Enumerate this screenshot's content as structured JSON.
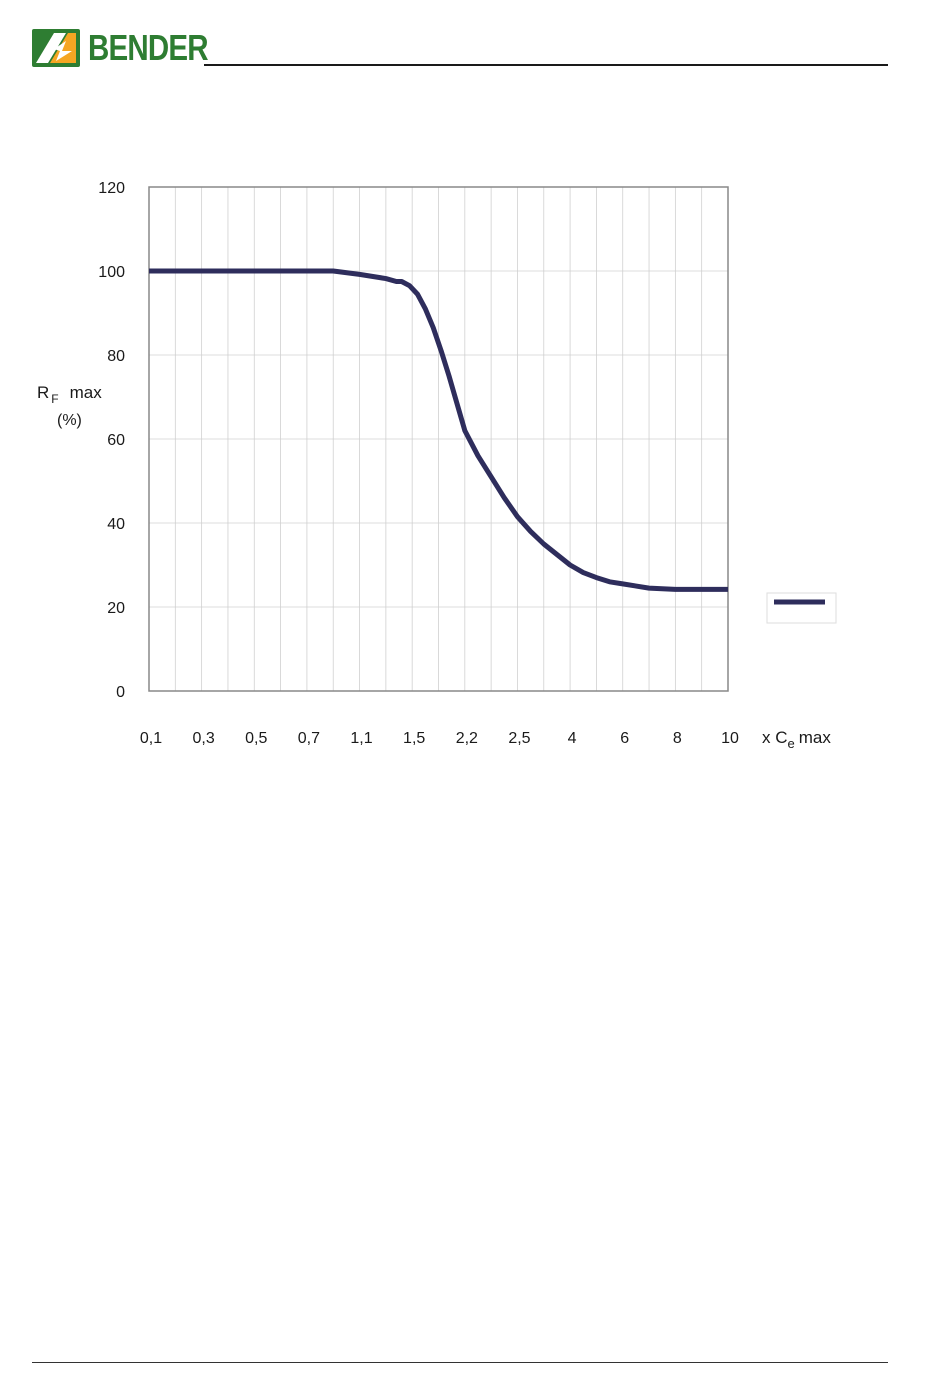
{
  "header": {
    "brand": "BENDER"
  },
  "colors": {
    "series": "#2e2d5c",
    "brand_green": "#2e7d32",
    "brand_orange": "#f5a623"
  },
  "chart_data": {
    "type": "line",
    "ylabel_main": "R",
    "ylabel_sub": "F",
    "ylabel_rest": "max",
    "ylabel_unit": "(%)",
    "xlabel_prefix": "x C",
    "xlabel_sub": "e",
    "xlabel_rest": "max",
    "ylim": [
      0,
      120
    ],
    "yticks": [
      0,
      20,
      40,
      60,
      80,
      100,
      120
    ],
    "ytick_labels": [
      "0",
      "20",
      "40",
      "60",
      "80",
      "100",
      "120"
    ],
    "x_positions": 22,
    "xtick_labels": [
      "0,1",
      "0,3",
      "0,5",
      "0,7",
      "1,1",
      "1,5",
      "2,2",
      "2,5",
      "4",
      "6",
      "8",
      "10"
    ],
    "xtick_label_positions": [
      0,
      2,
      4,
      6,
      8,
      10,
      12,
      14,
      16,
      18,
      20,
      22
    ],
    "grid": true,
    "legend": "right",
    "series": [
      {
        "values": [
          [
            0,
            100
          ],
          [
            7,
            100
          ],
          [
            8,
            99.2
          ],
          [
            9,
            98.2
          ],
          [
            9.4,
            97.5
          ],
          [
            9.6,
            97.5
          ],
          [
            9.9,
            96.5
          ],
          [
            10.2,
            94.5
          ],
          [
            10.5,
            91
          ],
          [
            10.8,
            86.5
          ],
          [
            11.1,
            81
          ],
          [
            11.4,
            75
          ],
          [
            11.7,
            68.5
          ],
          [
            12,
            62
          ],
          [
            12.5,
            56
          ],
          [
            13,
            51
          ],
          [
            13.5,
            46
          ],
          [
            14,
            41.5
          ],
          [
            14.5,
            38
          ],
          [
            15,
            35
          ],
          [
            15.5,
            32.5
          ],
          [
            16,
            30
          ],
          [
            16.5,
            28.2
          ],
          [
            17,
            27
          ],
          [
            17.5,
            26
          ],
          [
            18,
            25.5
          ],
          [
            19,
            24.5
          ],
          [
            20,
            24.2
          ],
          [
            21,
            24.2
          ],
          [
            22,
            24.2
          ]
        ]
      }
    ]
  }
}
